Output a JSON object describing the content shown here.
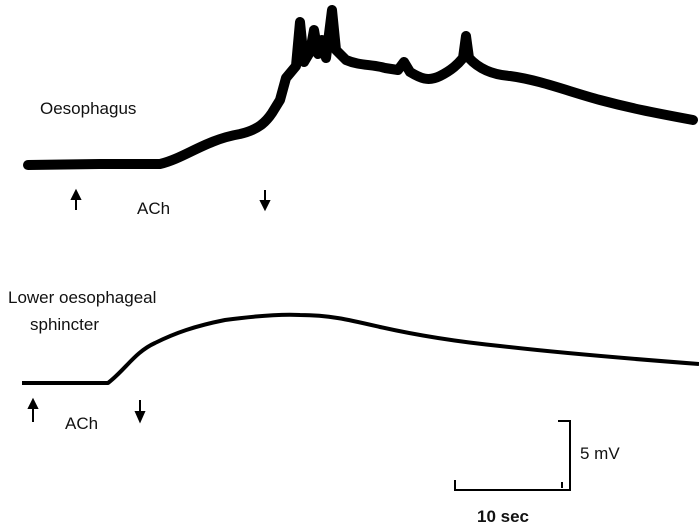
{
  "traces": [
    {
      "label": [
        "Oesophagus"
      ],
      "stimulus": "ACh"
    },
    {
      "label": [
        "Lower oesophageal",
        "sphincter"
      ],
      "stimulus": "ACh"
    }
  ],
  "scale_bar": {
    "vertical": "5 mV",
    "horizontal": "10 sec"
  }
}
